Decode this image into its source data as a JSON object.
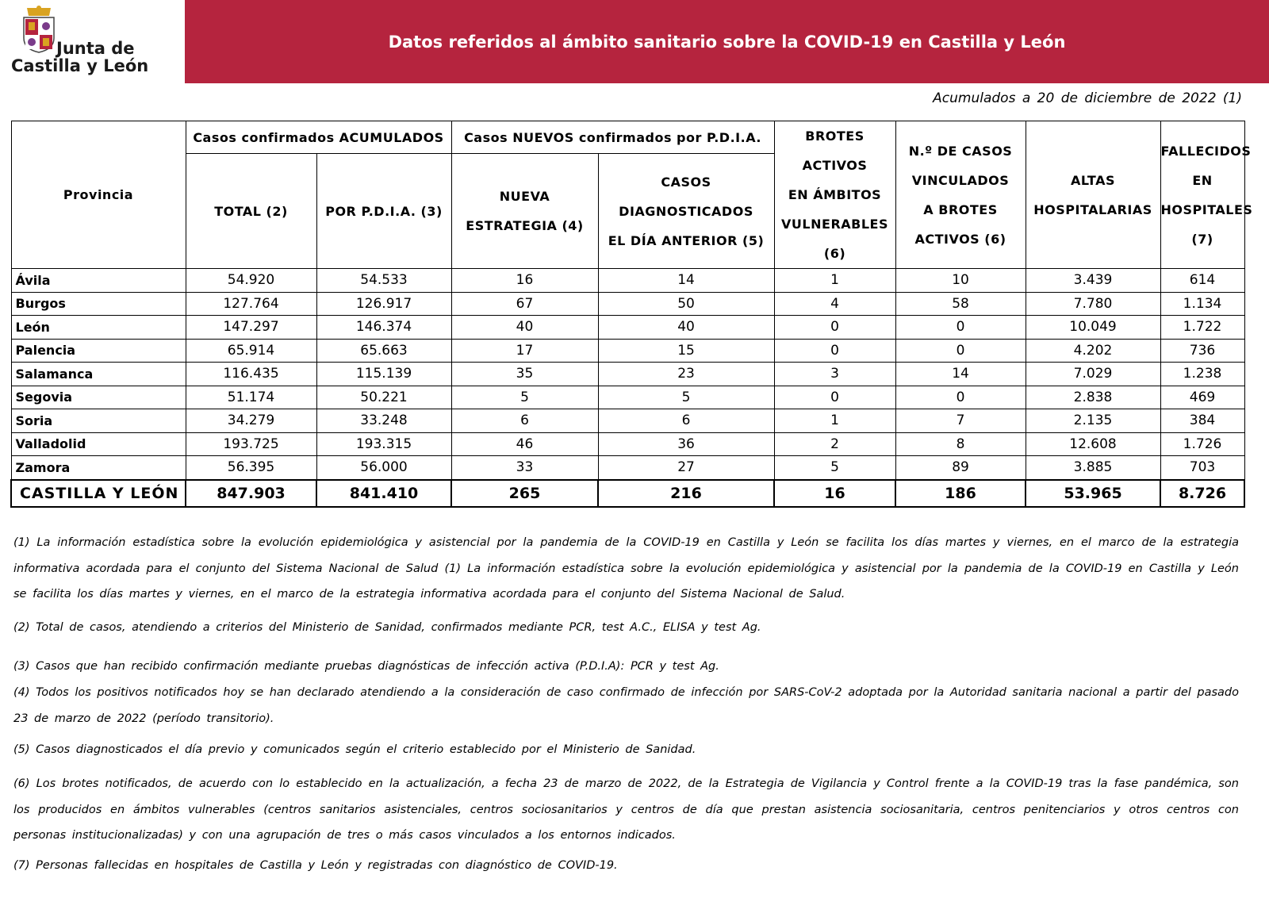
{
  "header": {
    "logo_lines": [
      "Junta de",
      "Castilla y León"
    ],
    "title": "Datos referidos al ámbito sanitario sobre la COVID-19 en Castilla y León"
  },
  "date_note": "Acumulados a 20 de diciembre de 2022 (1)",
  "table": {
    "group_headers": [
      "Casos confirmados ACUMULADOS",
      "Casos NUEVOS confirmados por P.D.I.A."
    ],
    "columns": [
      [
        "Provincia"
      ],
      [
        "TOTAL (2)"
      ],
      [
        "POR P.D.I.A. (3)"
      ],
      [
        "NUEVA",
        "ESTRATEGIA (4)"
      ],
      [
        "CASOS",
        "DIAGNOSTICADOS",
        "EL DÍA ANTERIOR (5)"
      ],
      [
        "BROTES",
        "ACTIVOS",
        "EN ÁMBITOS",
        "VULNERABLES",
        "(6)"
      ],
      [
        "N.º DE CASOS",
        "VINCULADOS",
        "A BROTES",
        "ACTIVOS (6)"
      ],
      [
        "ALTAS",
        "HOSPITALARIAS"
      ],
      [
        "FALLECIDOS",
        "EN",
        "HOSPITALES",
        "(7)"
      ]
    ],
    "rows": [
      [
        "Ávila",
        "54.920",
        "54.533",
        "16",
        "14",
        "1",
        "10",
        "3.439",
        "614"
      ],
      [
        "Burgos",
        "127.764",
        "126.917",
        "67",
        "50",
        "4",
        "58",
        "7.780",
        "1.134"
      ],
      [
        "León",
        "147.297",
        "146.374",
        "40",
        "40",
        "0",
        "0",
        "10.049",
        "1.722"
      ],
      [
        "Palencia",
        "65.914",
        "65.663",
        "17",
        "15",
        "0",
        "0",
        "4.202",
        "736"
      ],
      [
        "Salamanca",
        "116.435",
        "115.139",
        "35",
        "23",
        "3",
        "14",
        "7.029",
        "1.238"
      ],
      [
        "Segovia",
        "51.174",
        "50.221",
        "5",
        "5",
        "0",
        "0",
        "2.838",
        "469"
      ],
      [
        "Soria",
        "34.279",
        "33.248",
        "6",
        "6",
        "1",
        "7",
        "2.135",
        "384"
      ],
      [
        "Valladolid",
        "193.725",
        "193.315",
        "46",
        "36",
        "2",
        "8",
        "12.608",
        "1.726"
      ],
      [
        "Zamora",
        "56.395",
        "56.000",
        "33",
        "27",
        "5",
        "89",
        "3.885",
        "703"
      ]
    ],
    "total": [
      "CASTILLA Y LEÓN",
      "847.903",
      "841.410",
      "265",
      "216",
      "16",
      "186",
      "53.965",
      "8.726"
    ]
  },
  "notes": [
    "(1) La información estadística sobre la evolución epidemiológica y asistencial por la pandemia de la COVID-19 en Castilla y León se facilita los días martes y viernes, en el marco de la estrategia informativa acordada para el conjunto del Sistema Nacional de Salud (1) La información estadística sobre la evolución epidemiológica y asistencial por la pandemia de la COVID-19 en Castilla y León se facilita los días martes y viernes, en el marco de la estrategia informativa acordada para el conjunto del Sistema Nacional de Salud.",
    "(2) Total de casos, atendiendo a criterios del Ministerio de Sanidad, confirmados mediante PCR, test A.C., ELISA y test Ag.",
    "(3) Casos que han recibido confirmación mediante pruebas diagnósticas de infección activa (P.D.I.A): PCR y test Ag.",
    "(4) Todos los positivos notificados hoy se han declarado atendiendo a la consideración de caso confirmado de infección por SARS-CoV-2 adoptada por la Autoridad sanitaria nacional a partir del pasado 23 de marzo de 2022 (período transitorio).",
    "(5) Casos diagnosticados el día previo y comunicados según el criterio establecido por el Ministerio de Sanidad.",
    "(6) Los brotes notificados, de acuerdo con lo establecido en la actualización, a fecha 23 de marzo de 2022, de la Estrategia de Vigilancia y Control frente a la COVID-19 tras la fase pandémica, son los producidos en ámbitos vulnerables (centros sanitarios asistenciales, centros sociosanitarios y centros de día que prestan asistencia sociosanitaria, centros penitenciarios y otros centros con personas institucionalizadas) y con una agrupación de tres o más casos vinculados a los entornos indicados.",
    "(7) Personas fallecidas en hospitales de Castilla y León y registradas con diagnóstico de COVID-19."
  ]
}
